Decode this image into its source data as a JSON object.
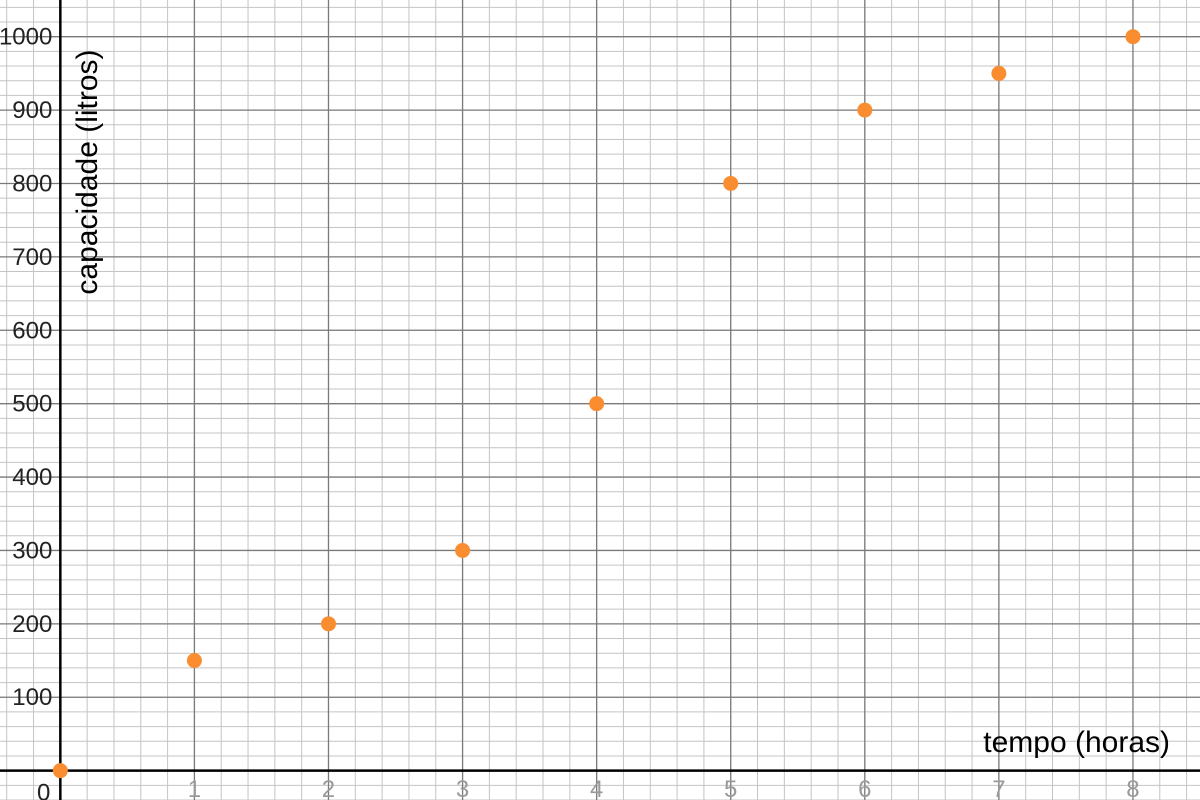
{
  "chart_data": {
    "type": "scatter",
    "title": "",
    "xlabel": "tempo (horas)",
    "ylabel": "capacidade (litros)",
    "xlim": [
      -0.45,
      8.5
    ],
    "ylim": [
      -40,
      1050
    ],
    "x_ticks": [
      "1",
      "2",
      "3",
      "4",
      "5",
      "6",
      "7",
      "8"
    ],
    "y_ticks": [
      "100",
      "200",
      "300",
      "400",
      "500",
      "600",
      "700",
      "800",
      "900",
      "1000"
    ],
    "origin_label": "0",
    "grid": true,
    "minor_grid_per_major": 5,
    "point_color": "#F98D2F",
    "series": [
      {
        "x": [
          0,
          1,
          2,
          3,
          4,
          5,
          6,
          7,
          8
        ],
        "y": [
          0,
          150,
          200,
          300,
          500,
          800,
          900,
          950,
          1000
        ]
      }
    ]
  }
}
